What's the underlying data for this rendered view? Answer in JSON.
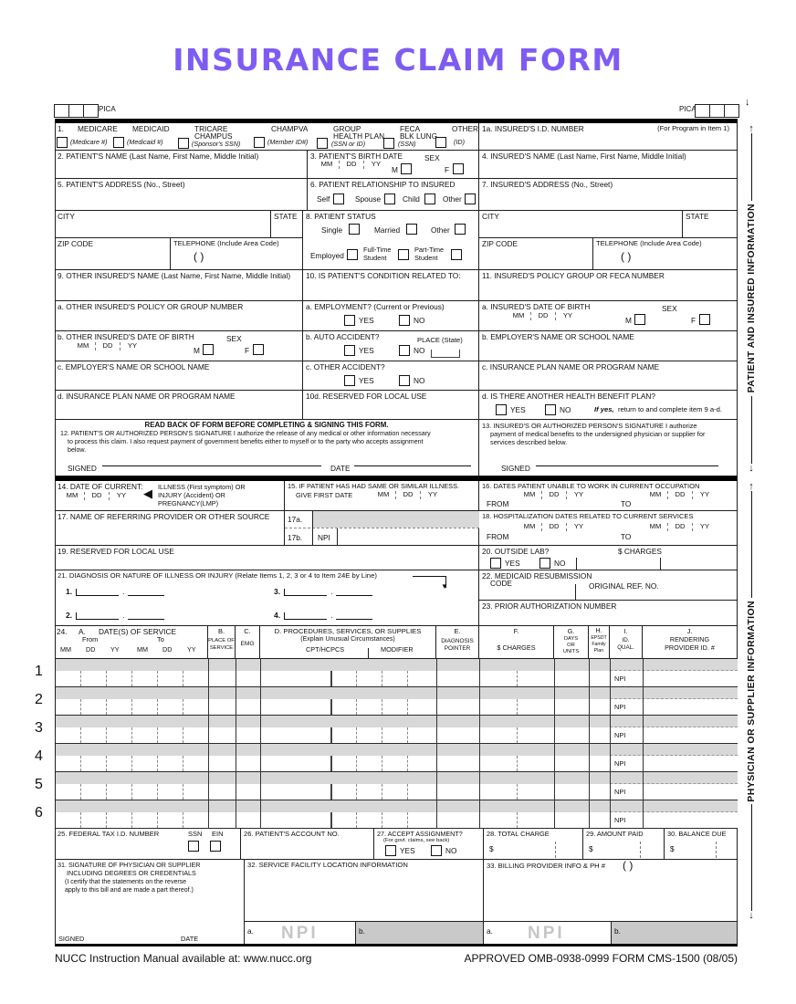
{
  "title": "INSURANCE CLAIM FORM",
  "shared": {
    "pica": "PICA",
    "mm": "MM",
    "dd": "DD",
    "yy": "YY",
    "sex": "SEX",
    "m": "M",
    "f": "F",
    "yes": "YES",
    "no": "NO",
    "from": "FROM",
    "to": "TO",
    "signed": "SIGNED",
    "date": "DATE",
    "npi": "NPI",
    "city": "CITY",
    "state": "STATE",
    "zip": "ZIP CODE",
    "telephone": "TELEPHONE (Include Area Code)",
    "phone_parens": "(        )",
    "dollar": "$"
  },
  "plans": {
    "num": "1.",
    "items": [
      {
        "n1": "MEDICARE",
        "n2": "",
        "sub": "(Medicare #)"
      },
      {
        "n1": "MEDICAID",
        "n2": "",
        "sub": "(Medicaid  #)"
      },
      {
        "n1": "TRICARE",
        "n2": "CHAMPUS",
        "sub": "(Sponsor's SSN)"
      },
      {
        "n1": "CHAMPVA",
        "n2": "",
        "sub": "(Member ID#)"
      },
      {
        "n1": "GROUP",
        "n2": "HEALTH PLAN",
        "sub": "(SSN or ID)"
      },
      {
        "n1": "FECA",
        "n2": "BLK LUNG",
        "sub": "(SSN)"
      },
      {
        "n1": "OTHER",
        "n2": "",
        "sub": "(ID)"
      }
    ]
  },
  "f1a": {
    "label": "1a. INSURED'S I.D. NUMBER",
    "note": "(For Program in Item 1)"
  },
  "f2": {
    "label": "2. PATIENT'S NAME (Last Name, First Name, Middle Initial)"
  },
  "f3": {
    "label": "3. PATIENT'S BIRTH DATE"
  },
  "f4": {
    "label": "4. INSURED'S NAME (Last Name, First Name, Middle Initial)"
  },
  "f5": {
    "label": "5. PATIENT'S ADDRESS (No., Street)"
  },
  "f6": {
    "label": "6. PATIENT RELATIONSHIP TO INSURED",
    "o1": "Self",
    "o2": "Spouse",
    "o3": "Child",
    "o4": "Other"
  },
  "f7": {
    "label": "7. INSURED'S ADDRESS (No., Street)"
  },
  "f8": {
    "label": "8. PATIENT STATUS",
    "s1": "Single",
    "s2": "Married",
    "s3": "Other",
    "e1": "Employed",
    "ft1": "Full-Time",
    "ft2": "Student",
    "pt1": "Part-Time",
    "pt2": "Student"
  },
  "f9": {
    "label": "9. OTHER INSURED'S NAME (Last Name, First Name, Middle Initial)"
  },
  "f10": {
    "label": "10. IS PATIENT'S CONDITION RELATED TO:"
  },
  "f11": {
    "label": "11. INSURED'S POLICY GROUP OR FECA NUMBER"
  },
  "f9a": {
    "label": "a. OTHER INSURED'S POLICY OR GROUP NUMBER"
  },
  "f10a": {
    "label": "a. EMPLOYMENT? (Current or Previous)"
  },
  "f11a": {
    "label": "a. INSURED'S DATE OF BIRTH"
  },
  "f9b": {
    "label": "b. OTHER INSURED'S DATE OF BIRTH"
  },
  "f10b": {
    "label": "b. AUTO ACCIDENT?",
    "place": "PLACE (State)"
  },
  "f11b": {
    "label": "b. EMPLOYER'S NAME OR SCHOOL NAME"
  },
  "f9c": {
    "label": "c. EMPLOYER'S NAME OR SCHOOL NAME"
  },
  "f10c": {
    "label": "c. OTHER ACCIDENT?"
  },
  "f11c": {
    "label": "c. INSURANCE PLAN NAME OR PROGRAM NAME"
  },
  "f9d": {
    "label": "d. INSURANCE PLAN NAME OR PROGRAM NAME"
  },
  "f10d": {
    "label": "10d. RESERVED FOR LOCAL USE"
  },
  "f11d": {
    "label": "d. IS THERE ANOTHER HEALTH BENEFIT PLAN?",
    "ifyes": "If yes,",
    "ifyes_rest": "return to and complete item 9 a-d."
  },
  "f12": {
    "readback": "READ BACK OF FORM BEFORE COMPLETING & SIGNING THIS FORM.",
    "l1": "12. PATIENT'S OR AUTHORIZED PERSON'S SIGNATURE  I authorize the release of any medical or other information necessary",
    "l2": "to process this claim. I also request payment of government benefits either to myself or to the party who accepts assignment",
    "l3": "below."
  },
  "f13": {
    "l1": "13. INSURED'S OR AUTHORIZED PERSON'S SIGNATURE I authorize",
    "l2": "payment of medical benefits to the undersigned physician or supplier for",
    "l3": "services described below."
  },
  "f14": {
    "label": "14. DATE OF CURRENT:",
    "arrow": "◀",
    "o1": "ILLNESS (First symptom) OR",
    "o2": "INJURY (Accident) OR",
    "o3": "PREGNANCY(LMP)"
  },
  "f15": {
    "l1": "15. IF PATIENT HAS HAD SAME OR SIMILAR ILLNESS.",
    "l2": "GIVE FIRST DATE"
  },
  "f16": {
    "label": "16. DATES PATIENT UNABLE TO WORK IN CURRENT OCCUPATION"
  },
  "f17": {
    "label": "17. NAME OF REFERRING PROVIDER OR OTHER SOURCE",
    "a": "17a.",
    "b": "17b."
  },
  "f18": {
    "label": "18. HOSPITALIZATION DATES RELATED TO CURRENT SERVICES"
  },
  "f19": {
    "label": "19. RESERVED FOR LOCAL USE"
  },
  "f20": {
    "label": "20. OUTSIDE LAB?",
    "charges": "$ CHARGES"
  },
  "f21": {
    "label": "21. DIAGNOSIS OR NATURE OF ILLNESS OR INJURY (Relate Items 1, 2, 3 or 4 to Item 24E by Line)",
    "n1": "1.",
    "n2": "2.",
    "n3": "3.",
    "n4": "4.",
    "down_arrow": "▼"
  },
  "f22": {
    "label": "22. MEDICAID RESUBMISSION",
    "code": "CODE",
    "orig": "ORIGINAL REF. NO."
  },
  "f23": {
    "label": "23. PRIOR AUTHORIZATION NUMBER"
  },
  "t24": {
    "num": "24.",
    "a": "A.",
    "a_title": "DATE(S) OF SERVICE",
    "from": "From",
    "to": "To",
    "b": "B.",
    "b2": "PLACE OF",
    "b3": "SERVICE",
    "c": "C.",
    "c2": "EMG",
    "d": "D. PROCEDURES, SERVICES, OR SUPPLIES",
    "d2": "(Explain Unusual Circumstances)",
    "cpt": "CPT/HCPCS",
    "mod": "MODIFIER",
    "e": "E.",
    "e2": "DIAGNOSIS",
    "e3": "POINTER",
    "f": "F.",
    "f2": "$ CHARGES",
    "g": "G.",
    "g2": "DAYS",
    "g3": "OR",
    "g4": "UNITS",
    "h": "H.",
    "h2": "EPSDT",
    "h3": "Family",
    "h4": "Plan",
    "i": "I.",
    "i2": "ID.",
    "i3": "QUAL.",
    "j": "J.",
    "j2": "RENDERING",
    "j3": "PROVIDER ID. #",
    "lines": [
      "1",
      "2",
      "3",
      "4",
      "5",
      "6"
    ]
  },
  "f25": {
    "label": "25. FEDERAL TAX I.D. NUMBER",
    "ssn": "SSN",
    "ein": "EIN"
  },
  "f26": {
    "label": "26. PATIENT'S ACCOUNT NO."
  },
  "f27": {
    "label": "27. ACCEPT ASSIGNMENT?",
    "sub": "(For govt. claims, see back)"
  },
  "f28": {
    "label": "28. TOTAL CHARGE"
  },
  "f29": {
    "label": "29. AMOUNT PAID"
  },
  "f30": {
    "label": "30. BALANCE DUE"
  },
  "f31": {
    "l1": "31. SIGNATURE OF PHYSICIAN OR SUPPLIER",
    "l2": "INCLUDING DEGREES OR CREDENTIALS",
    "l3": "(I certify that the statements on the reverse",
    "l4": "apply to this bill and are made a part thereof.)"
  },
  "f32": {
    "label": "32. SERVICE FACILITY LOCATION INFORMATION",
    "a": "a.",
    "b": "b."
  },
  "f33": {
    "label": "33. BILLING PROVIDER INFO & PH #",
    "parens": "(        )",
    "a": "a.",
    "b": "b."
  },
  "margin": {
    "top": "PATIENT AND INSURED INFORMATION",
    "bottom": "PHYSICIAN OR SUPPLIER INFORMATION",
    "up": "↑",
    "down": "↓"
  },
  "footer": {
    "left": "NUCC Instruction Manual available at: www.nucc.org",
    "right": "APPROVED OMB-0938-0999 FORM CMS-1500 (08/05)"
  }
}
